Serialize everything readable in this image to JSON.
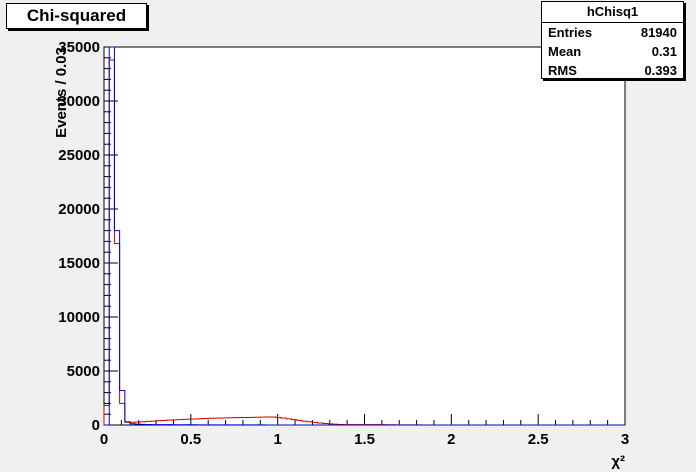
{
  "chart_data": {
    "type": "histogram",
    "title": "Chi-squared",
    "xlabel": "χ²",
    "ylabel": "Events / 0.03",
    "xlim": [
      0,
      3
    ],
    "ylim": [
      0,
      35000
    ],
    "xticks": [
      "0",
      "0.5",
      "1",
      "1.5",
      "2",
      "2.5",
      "3"
    ],
    "yticks": [
      "0",
      "5000",
      "10000",
      "15000",
      "20000",
      "25000",
      "30000",
      "35000"
    ],
    "grid": false,
    "bin_width": 0.03,
    "series": [
      {
        "color": "#0000cc",
        "values": [
          0,
          35000,
          18000,
          3200,
          300,
          120,
          80,
          60,
          50,
          40,
          35,
          30,
          30,
          25,
          25,
          20,
          20,
          20,
          15,
          15,
          15,
          12,
          12,
          10,
          10,
          10,
          8,
          8,
          8,
          6,
          6,
          5,
          5,
          5,
          4,
          4,
          4,
          3,
          3,
          3,
          3,
          2,
          2,
          2,
          2,
          2,
          2,
          1,
          1,
          1,
          1,
          1,
          1,
          1,
          1,
          1,
          1,
          1,
          1,
          1,
          1,
          1,
          1,
          1,
          1,
          1,
          1,
          1,
          1,
          1,
          1,
          1,
          1,
          1,
          1,
          1,
          1,
          1,
          1,
          1,
          1,
          1,
          1,
          1,
          1,
          1,
          1,
          1,
          1,
          1,
          1,
          1,
          1,
          1,
          1,
          1,
          1,
          1,
          1,
          1
        ]
      },
      {
        "color": "#cc0000",
        "values": [
          1800,
          33800,
          16800,
          2000,
          250,
          260,
          280,
          300,
          330,
          360,
          390,
          420,
          450,
          480,
          500,
          520,
          540,
          560,
          580,
          600,
          620,
          640,
          650,
          660,
          670,
          680,
          690,
          700,
          710,
          720,
          730,
          740,
          740,
          700,
          640,
          570,
          500,
          430,
          360,
          300,
          240,
          190,
          140,
          100,
          70,
          50,
          40,
          40,
          40,
          40,
          40,
          40,
          35,
          30,
          25,
          20,
          15,
          12,
          10,
          8,
          6,
          5,
          4,
          3,
          3,
          2,
          2,
          2,
          1,
          1,
          1,
          1,
          1,
          1,
          1,
          1,
          1,
          1,
          1,
          1,
          1,
          1,
          1,
          1,
          1,
          1,
          1,
          1,
          1,
          1,
          1,
          1,
          1,
          1,
          1,
          1,
          1,
          1,
          1,
          1
        ]
      }
    ],
    "stats": {
      "name": "hChisq1",
      "entries_label": "Entries",
      "entries": "81940",
      "mean_label": "Mean",
      "mean": "0.31",
      "rms_label": "RMS",
      "rms": "0.393"
    }
  }
}
